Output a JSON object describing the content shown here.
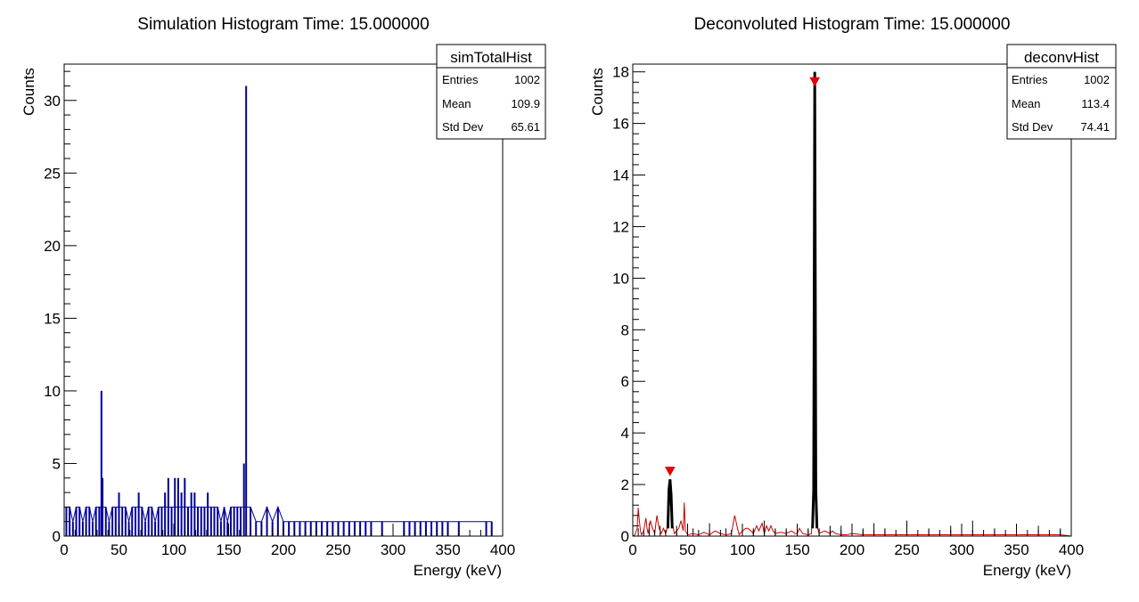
{
  "colors": {
    "sim_hist": "#000099",
    "deconv_hist": "#cc0000",
    "peak_marker": "#e00000",
    "axis": "#000000",
    "background": "#ffffff"
  },
  "chart_data": [
    {
      "type": "bar",
      "title": "Simulation Histogram Time: 15.000000",
      "xlabel": "Energy (keV)",
      "ylabel": "Counts",
      "xlim": [
        0,
        400
      ],
      "ylim": [
        0,
        32.5
      ],
      "xticks": [
        0,
        50,
        100,
        150,
        200,
        250,
        300,
        350,
        400
      ],
      "yticks": [
        0,
        5,
        10,
        15,
        20,
        25,
        30
      ],
      "grid": false,
      "stats_box": {
        "name": "simTotalHist",
        "rows": [
          {
            "label": "Entries",
            "value": "1002"
          },
          {
            "label": "Mean",
            "value": "109.9"
          },
          {
            "label": "Std Dev",
            "value": "65.61"
          }
        ]
      },
      "x": [
        2,
        5,
        8,
        11,
        14,
        17,
        20,
        23,
        26,
        29,
        32,
        34,
        35,
        38,
        41,
        44,
        47,
        50,
        53,
        56,
        59,
        62,
        65,
        68,
        71,
        74,
        77,
        80,
        83,
        86,
        89,
        92,
        95,
        98,
        101,
        104,
        107,
        110,
        113,
        116,
        119,
        122,
        125,
        128,
        131,
        134,
        137,
        140,
        143,
        146,
        149,
        152,
        155,
        158,
        161,
        164,
        166,
        170,
        175,
        180,
        185,
        190,
        195,
        200,
        205,
        210,
        215,
        220,
        225,
        230,
        235,
        240,
        245,
        250,
        255,
        260,
        265,
        270,
        275,
        280,
        290,
        310,
        315,
        320,
        325,
        330,
        335,
        340,
        345,
        350,
        360,
        385,
        390
      ],
      "values": [
        2,
        2,
        1,
        2,
        2,
        1,
        2,
        2,
        1,
        2,
        2,
        10,
        4,
        2,
        1,
        2,
        2,
        3,
        2,
        2,
        1,
        2,
        2,
        3,
        2,
        1,
        2,
        2,
        1,
        2,
        2,
        3,
        4,
        2,
        4,
        4,
        3,
        4,
        2,
        3,
        3,
        2,
        2,
        2,
        3,
        2,
        2,
        2,
        1,
        2,
        1,
        2,
        2,
        2,
        2,
        5,
        31,
        2,
        1,
        1,
        2,
        1,
        2,
        1,
        1,
        1,
        1,
        1,
        1,
        1,
        1,
        1,
        1,
        1,
        1,
        1,
        1,
        1,
        1,
        1,
        1,
        1,
        1,
        1,
        1,
        1,
        1,
        1,
        1,
        1,
        1,
        1,
        1
      ]
    },
    {
      "type": "line",
      "title": "Deconvoluted Histogram Time: 15.000000",
      "xlabel": "Energy (keV)",
      "ylabel": "Counts",
      "xlim": [
        0,
        400
      ],
      "ylim": [
        0,
        18.3
      ],
      "xticks": [
        0,
        50,
        100,
        150,
        200,
        250,
        300,
        350,
        400
      ],
      "yticks": [
        0,
        2,
        4,
        6,
        8,
        10,
        12,
        14,
        16,
        18
      ],
      "grid": false,
      "stats_box": {
        "name": "deconvHist",
        "rows": [
          {
            "label": "Entries",
            "value": "1002"
          },
          {
            "label": "Mean",
            "value": "113.4"
          },
          {
            "label": "Std Dev",
            "value": "74.41"
          }
        ]
      },
      "x": [
        0,
        2,
        4,
        5,
        6,
        7,
        8,
        10,
        12,
        13,
        14,
        16,
        18,
        20,
        22,
        24,
        26,
        28,
        30,
        32,
        33,
        34,
        35,
        36,
        38,
        40,
        42,
        44,
        46,
        47,
        48,
        50,
        55,
        60,
        65,
        70,
        75,
        80,
        85,
        90,
        93,
        95,
        97,
        100,
        103,
        105,
        108,
        110,
        113,
        115,
        118,
        120,
        122,
        124,
        126,
        128,
        130,
        135,
        140,
        145,
        148,
        150,
        152,
        155,
        160,
        163,
        165,
        166,
        167,
        168,
        170,
        175,
        180,
        182,
        185,
        190,
        195,
        200,
        210,
        220,
        230,
        250,
        270,
        300,
        330,
        360,
        390,
        400
      ],
      "values": [
        0,
        0.05,
        0.3,
        1.1,
        0.6,
        0.2,
        0.05,
        0.2,
        0.7,
        0.3,
        0.1,
        0.6,
        0.3,
        0.1,
        0.8,
        0.3,
        0.1,
        0.3,
        0.1,
        0.4,
        0.9,
        1.6,
        1.2,
        0.5,
        0.1,
        0.2,
        0.3,
        0.6,
        0.2,
        1.3,
        0.2,
        0.05,
        0.1,
        0.05,
        0.15,
        0.05,
        0.2,
        0.1,
        0.05,
        0.1,
        0.8,
        0.4,
        0.05,
        0.2,
        0.3,
        0.3,
        0.2,
        0.1,
        0.4,
        0.2,
        0.5,
        0.1,
        0.4,
        0.2,
        0.4,
        0.2,
        0.1,
        0.15,
        0.1,
        0.2,
        0.1,
        0.1,
        0.3,
        0.1,
        0.05,
        0.1,
        2.0,
        17.5,
        2.0,
        0.4,
        0.1,
        0.2,
        0.1,
        0.2,
        0.1,
        0.05,
        0.05,
        0.1,
        0.05,
        0.05,
        0.05,
        0.05,
        0.05,
        0.05,
        0.05,
        0.05,
        0.05,
        0
      ],
      "peak_overlay": {
        "x": [
          32,
          33,
          34,
          35,
          36,
          164,
          165,
          166,
          167,
          168
        ],
        "values": [
          0.3,
          1.8,
          2.2,
          1.6,
          0.3,
          0.3,
          1.8,
          18,
          1.8,
          0.3
        ]
      },
      "peak_markers": [
        {
          "x": 34,
          "y": 2.5
        },
        {
          "x": 166,
          "y": 17.6
        }
      ],
      "spike_x": [
        5,
        15,
        25,
        40,
        55,
        70,
        85,
        100,
        110,
        120,
        130,
        140,
        150,
        160,
        170,
        180,
        190,
        200,
        210,
        220,
        230,
        250,
        270,
        290,
        310,
        330,
        350,
        370,
        390
      ],
      "spike_values": [
        0.3,
        0.5,
        0.4,
        0.4,
        0.3,
        0.5,
        0.3,
        0.4,
        0.3,
        0.6,
        0.3,
        0.3,
        0.4,
        0.3,
        0.3,
        0.4,
        0.4,
        0.3,
        0.3,
        0.5,
        0.3,
        0.6,
        0.3,
        0.4,
        0.6,
        0.3,
        0.3,
        0.4,
        0.3
      ]
    }
  ]
}
